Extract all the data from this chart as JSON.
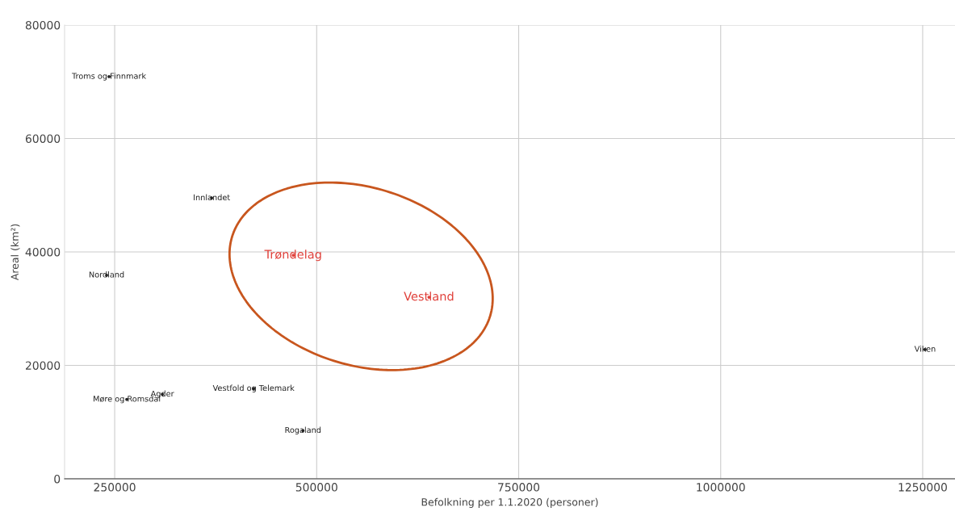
{
  "chart_data": {
    "type": "scatter",
    "xlabel": "Befolkning per 1.1.2020 (personer)",
    "ylabel": "Areal (km²)",
    "xlim": [
      188000,
      1290000
    ],
    "ylim": [
      0,
      80000
    ],
    "xticks": [
      250000,
      500000,
      750000,
      1000000,
      1250000
    ],
    "yticks": [
      0,
      20000,
      40000,
      60000,
      80000
    ],
    "grid": true,
    "marker": "circle",
    "series": [
      {
        "color": "#222222",
        "x": [
          243000,
          370000,
          240000,
          471000,
          639000,
          1253000,
          422000,
          309000,
          265000,
          483000
        ],
        "values": [
          70900,
          49500,
          35900,
          39400,
          32000,
          22800,
          15900,
          14900,
          14000,
          8500
        ],
        "value_labels": [
          "Troms og Finnmark",
          "Innlandet",
          "Nordland",
          "Trøndelag",
          "Vestland",
          "Viken",
          "Vestfold og Telemark",
          "Agder",
          "Møre og Romsdal",
          "Rogaland"
        ],
        "colors": [
          "#222222",
          "#222222",
          "#222222",
          "#e0403a",
          "#e0403a",
          "#222222",
          "#222222",
          "#222222",
          "#222222",
          "#222222"
        ]
      }
    ]
  }
}
